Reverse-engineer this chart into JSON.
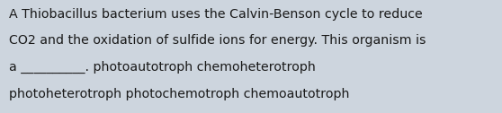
{
  "lines": [
    "A Thiobacillus bacterium uses the Calvin-Benson cycle to reduce",
    "CO2 and the oxidation of sulfide ions for energy. This organism is",
    "a __________. photoautotroph chemoheterotroph",
    "photoheterotroph photochemotroph chemoautotroph"
  ],
  "background_color": "#cdd5de",
  "text_color": "#1a1a1a",
  "font_size": 10.2,
  "fig_width": 5.58,
  "fig_height": 1.26,
  "dpi": 100
}
